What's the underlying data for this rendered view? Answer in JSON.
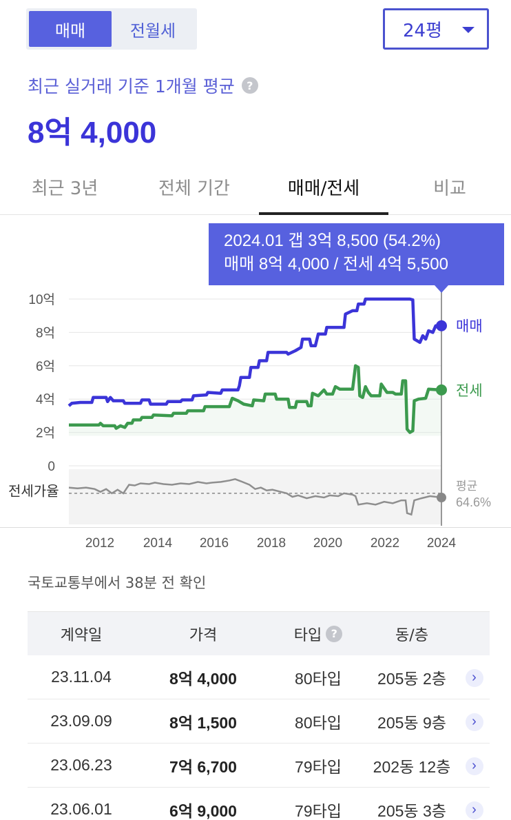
{
  "trade_toggle": {
    "options": [
      "매매",
      "전월세"
    ],
    "selected": 0
  },
  "size_select": {
    "value": "24평"
  },
  "summary": {
    "caption": "최근 실거래 기준 1개월 평균",
    "price": "8억 4,000"
  },
  "tabs": [
    {
      "label": "최근 3년",
      "active": false
    },
    {
      "label": "전체 기간",
      "active": false
    },
    {
      "label": "매매/전세",
      "active": true
    },
    {
      "label": "비교",
      "active": false
    }
  ],
  "tooltip": {
    "line1": "2024.01  갭 3억 8,500 (54.2%)",
    "line2": "매매 8억 4,000 / 전세 4억 5,500"
  },
  "colors": {
    "sale": "#3b34d8",
    "jeonse": "#3c9a4e",
    "ratio": "#8e8e8e",
    "accent": "#5761df"
  },
  "chart_data": {
    "type": "line",
    "y_unit": "억",
    "ylim": [
      0,
      10
    ],
    "y_ticks": [
      "10억",
      "8억",
      "6억",
      "4억",
      "2억",
      "0"
    ],
    "x_ticks": [
      "2012",
      "2014",
      "2016",
      "2018",
      "2020",
      "2022",
      "2024"
    ],
    "x_range": [
      2011.0,
      2024.0
    ],
    "series": [
      {
        "name": "매매",
        "key": "sale",
        "points": [
          [
            2011.0,
            3.6
          ],
          [
            2011.1,
            3.75
          ],
          [
            2011.4,
            3.8
          ],
          [
            2011.8,
            3.8
          ],
          [
            2011.85,
            4.1
          ],
          [
            2012.3,
            4.1
          ],
          [
            2012.35,
            3.85
          ],
          [
            2012.45,
            4.1
          ],
          [
            2012.55,
            3.9
          ],
          [
            2012.9,
            3.9
          ],
          [
            2012.95,
            3.75
          ],
          [
            2013.5,
            3.75
          ],
          [
            2013.55,
            3.95
          ],
          [
            2013.8,
            3.95
          ],
          [
            2013.85,
            3.7
          ],
          [
            2014.4,
            3.7
          ],
          [
            2014.45,
            3.85
          ],
          [
            2014.9,
            3.85
          ],
          [
            2014.95,
            3.95
          ],
          [
            2015.3,
            3.95
          ],
          [
            2015.35,
            4.2
          ],
          [
            2015.8,
            4.25
          ],
          [
            2015.85,
            4.4
          ],
          [
            2016.3,
            4.35
          ],
          [
            2016.35,
            4.55
          ],
          [
            2016.9,
            4.55
          ],
          [
            2016.95,
            4.8
          ],
          [
            2017.0,
            5.3
          ],
          [
            2017.3,
            5.3
          ],
          [
            2017.35,
            5.9
          ],
          [
            2017.6,
            5.9
          ],
          [
            2017.65,
            6.3
          ],
          [
            2017.9,
            6.3
          ],
          [
            2017.95,
            6.8
          ],
          [
            2018.6,
            6.8
          ],
          [
            2018.65,
            6.7
          ],
          [
            2018.9,
            6.9
          ],
          [
            2019.1,
            7.1
          ],
          [
            2019.15,
            7.6
          ],
          [
            2019.4,
            7.6
          ],
          [
            2019.45,
            7.2
          ],
          [
            2019.6,
            7.2
          ],
          [
            2019.7,
            7.9
          ],
          [
            2019.95,
            7.9
          ],
          [
            2020.0,
            8.3
          ],
          [
            2020.6,
            8.3
          ],
          [
            2020.65,
            9.1
          ],
          [
            2020.9,
            9.3
          ],
          [
            2021.05,
            9.3
          ],
          [
            2021.1,
            9.7
          ],
          [
            2021.3,
            9.7
          ],
          [
            2021.35,
            10.0
          ],
          [
            2022.9,
            10.0
          ],
          [
            2023.0,
            9.95
          ],
          [
            2023.05,
            7.6
          ],
          [
            2023.25,
            7.4
          ],
          [
            2023.35,
            7.8
          ],
          [
            2023.45,
            7.6
          ],
          [
            2023.55,
            8.1
          ],
          [
            2023.7,
            8.0
          ],
          [
            2023.8,
            8.4
          ],
          [
            2024.0,
            8.4
          ]
        ]
      },
      {
        "name": "전세",
        "key": "jeonse",
        "points": [
          [
            2011.0,
            2.45
          ],
          [
            2012.05,
            2.45
          ],
          [
            2012.1,
            2.55
          ],
          [
            2012.2,
            2.4
          ],
          [
            2012.6,
            2.4
          ],
          [
            2012.65,
            2.25
          ],
          [
            2012.8,
            2.4
          ],
          [
            2012.95,
            2.3
          ],
          [
            2013.05,
            2.55
          ],
          [
            2013.2,
            2.55
          ],
          [
            2013.25,
            2.75
          ],
          [
            2013.5,
            2.75
          ],
          [
            2013.55,
            2.9
          ],
          [
            2013.9,
            2.9
          ],
          [
            2013.95,
            3.05
          ],
          [
            2014.6,
            3.0
          ],
          [
            2014.65,
            3.15
          ],
          [
            2015.1,
            3.15
          ],
          [
            2015.15,
            3.3
          ],
          [
            2015.7,
            3.3
          ],
          [
            2015.75,
            3.55
          ],
          [
            2016.6,
            3.55
          ],
          [
            2016.65,
            3.8
          ],
          [
            2016.7,
            4.05
          ],
          [
            2016.9,
            3.9
          ],
          [
            2017.1,
            3.7
          ],
          [
            2017.4,
            3.6
          ],
          [
            2017.45,
            3.95
          ],
          [
            2017.8,
            3.9
          ],
          [
            2017.85,
            4.3
          ],
          [
            2018.2,
            4.3
          ],
          [
            2018.25,
            4.0
          ],
          [
            2018.65,
            4.0
          ],
          [
            2018.7,
            3.5
          ],
          [
            2018.9,
            3.5
          ],
          [
            2018.95,
            3.85
          ],
          [
            2019.3,
            3.85
          ],
          [
            2019.35,
            3.6
          ],
          [
            2019.45,
            3.6
          ],
          [
            2019.5,
            4.35
          ],
          [
            2019.7,
            4.2
          ],
          [
            2019.9,
            4.55
          ],
          [
            2020.0,
            4.3
          ],
          [
            2020.2,
            4.3
          ],
          [
            2020.3,
            4.75
          ],
          [
            2020.45,
            4.6
          ],
          [
            2020.9,
            4.6
          ],
          [
            2021.0,
            6.0
          ],
          [
            2021.1,
            5.9
          ],
          [
            2021.15,
            4.2
          ],
          [
            2021.25,
            4.1
          ],
          [
            2021.35,
            4.75
          ],
          [
            2021.45,
            4.4
          ],
          [
            2021.55,
            4.2
          ],
          [
            2021.85,
            4.2
          ],
          [
            2021.9,
            4.9
          ],
          [
            2022.1,
            4.4
          ],
          [
            2022.3,
            4.4
          ],
          [
            2022.4,
            4.3
          ],
          [
            2022.6,
            4.3
          ],
          [
            2022.65,
            5.1
          ],
          [
            2022.75,
            5.1
          ],
          [
            2022.8,
            2.2
          ],
          [
            2022.9,
            2.0
          ],
          [
            2023.0,
            2.1
          ],
          [
            2023.05,
            3.9
          ],
          [
            2023.2,
            4.0
          ],
          [
            2023.45,
            4.05
          ],
          [
            2023.55,
            4.6
          ],
          [
            2024.0,
            4.55
          ]
        ]
      }
    ],
    "ratio_series": {
      "label": "전세가율",
      "avg_label": "평균",
      "avg_value": "64.6%",
      "points": [
        [
          2011.0,
          68
        ],
        [
          2011.3,
          67
        ],
        [
          2011.6,
          68
        ],
        [
          2011.9,
          66
        ],
        [
          2012.1,
          62
        ],
        [
          2012.3,
          66
        ],
        [
          2012.5,
          60
        ],
        [
          2012.7,
          65
        ],
        [
          2012.9,
          60
        ],
        [
          2013.0,
          66
        ],
        [
          2013.1,
          72
        ],
        [
          2013.3,
          71
        ],
        [
          2013.5,
          74
        ],
        [
          2013.8,
          73
        ],
        [
          2014.0,
          75
        ],
        [
          2014.3,
          73
        ],
        [
          2014.6,
          72
        ],
        [
          2014.9,
          74
        ],
        [
          2015.2,
          73
        ],
        [
          2015.5,
          76
        ],
        [
          2015.8,
          74
        ],
        [
          2016.0,
          75
        ],
        [
          2016.3,
          76
        ],
        [
          2016.6,
          78
        ],
        [
          2016.8,
          80
        ],
        [
          2017.0,
          77
        ],
        [
          2017.3,
          72
        ],
        [
          2017.5,
          66
        ],
        [
          2017.7,
          68
        ],
        [
          2017.9,
          64
        ],
        [
          2018.1,
          65
        ],
        [
          2018.4,
          62
        ],
        [
          2018.6,
          60
        ],
        [
          2018.8,
          55
        ],
        [
          2019.0,
          57
        ],
        [
          2019.3,
          53
        ],
        [
          2019.6,
          56
        ],
        [
          2019.9,
          54
        ],
        [
          2020.1,
          57
        ],
        [
          2020.4,
          56
        ],
        [
          2020.6,
          60
        ],
        [
          2020.9,
          58
        ],
        [
          2021.0,
          56
        ],
        [
          2021.1,
          44
        ],
        [
          2021.4,
          46
        ],
        [
          2021.7,
          44
        ],
        [
          2022.0,
          48
        ],
        [
          2022.3,
          46
        ],
        [
          2022.6,
          50
        ],
        [
          2022.75,
          50
        ],
        [
          2022.8,
          32
        ],
        [
          2022.95,
          30
        ],
        [
          2023.05,
          50
        ],
        [
          2023.3,
          53
        ],
        [
          2023.6,
          56
        ],
        [
          2024.0,
          54
        ]
      ]
    },
    "end_labels": {
      "sale": "매매",
      "jeonse": "전세"
    }
  },
  "source": "국토교통부에서 38분 전 확인",
  "table": {
    "headers": [
      "계약일",
      "가격",
      "타입",
      "동/층"
    ],
    "rows": [
      {
        "date": "23.11.04",
        "price": "8억 4,000",
        "type": "80타입",
        "unit": "205동 2층"
      },
      {
        "date": "23.09.09",
        "price": "8억 1,500",
        "type": "80타입",
        "unit": "205동 9층"
      },
      {
        "date": "23.06.23",
        "price": "7억 6,700",
        "type": "79타입",
        "unit": "202동 12층"
      },
      {
        "date": "23.06.01",
        "price": "6억 9,000",
        "type": "79타입",
        "unit": "205동 3층"
      }
    ]
  }
}
